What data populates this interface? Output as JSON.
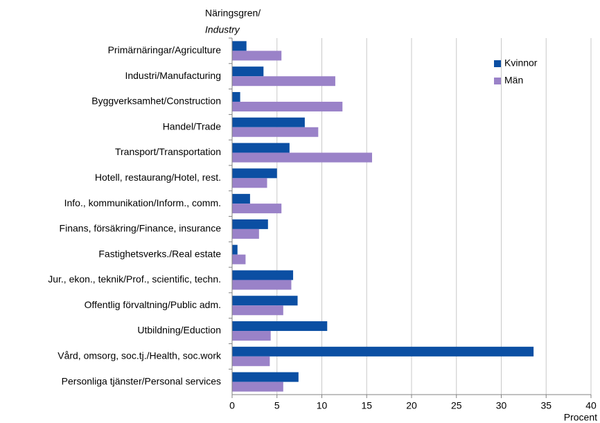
{
  "chart_data": {
    "type": "barh",
    "ylabel": "Näringsgren/",
    "ylabel_en": "Industry",
    "xlabel": "Procent",
    "categories": [
      "Primärnäringar/Agriculture",
      "Industri/Manufacturing",
      "Byggverksamhet/Construction",
      "Handel/Trade",
      "Transport/Transportation",
      "Hotell, restaurang/Hotel, rest.",
      "Info., kommunikation/Inform., comm.",
      "Finans, försäkring/Finance, insurance",
      "Fastighetsverks./Real estate",
      "Jur., ekon., teknik/Prof., scientific, techn.",
      "Offentlig förvaltning/Public adm.",
      "Utbildning/Eduction",
      "Vård, omsorg, soc.tj./Health, soc.work",
      "Personliga tjänster/Personal services"
    ],
    "series": [
      {
        "name": "Kvinnor",
        "color": "#0b4fa3",
        "values": [
          1.6,
          3.5,
          0.9,
          8.1,
          6.4,
          5.0,
          2.0,
          4.0,
          0.6,
          6.8,
          7.3,
          10.6,
          33.6,
          7.4
        ]
      },
      {
        "name": "Män",
        "color": "#9a82c8",
        "values": [
          5.5,
          11.5,
          12.3,
          9.6,
          15.6,
          3.9,
          5.5,
          3.0,
          1.5,
          6.6,
          5.7,
          4.3,
          4.2,
          5.7
        ]
      }
    ],
    "xlim": [
      0,
      40
    ],
    "xticks": [
      0,
      5,
      10,
      15,
      20,
      25,
      30,
      35,
      40
    ],
    "grid": true,
    "legend": "top-right"
  }
}
